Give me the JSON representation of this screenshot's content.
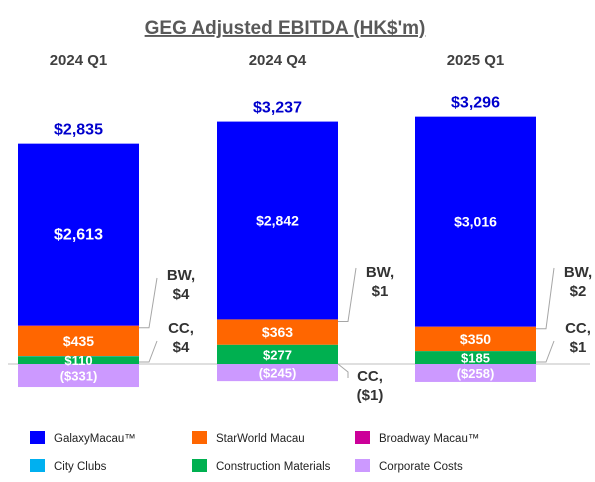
{
  "chart_data": {
    "type": "bar",
    "title": "GEG Adjusted EBITDA (HK$'m)",
    "categories": [
      "2024 Q1",
      "2024 Q4",
      "2025 Q1"
    ],
    "series": [
      {
        "name": "GalaxyMacau™",
        "color": "#0000ff",
        "values": [
          2613,
          2842,
          3016
        ],
        "labels": [
          "$2,613",
          "$2,842",
          "$3,016"
        ]
      },
      {
        "name": "StarWorld Macau",
        "color": "#ff6600",
        "values": [
          435,
          363,
          350
        ],
        "labels": [
          "$435",
          "$363",
          "$350"
        ]
      },
      {
        "name": "Broadway Macau™",
        "color": "#cc0099",
        "values": [
          4,
          1,
          2
        ],
        "labels": [
          "BW,\n$4",
          "BW,\n$1",
          "BW,\n$2"
        ]
      },
      {
        "name": "City Clubs",
        "color": "#00b0f0",
        "values": [
          4,
          -1,
          1
        ],
        "labels": [
          "CC,\n$4",
          "CC,\n($1)",
          "CC,\n$1"
        ]
      },
      {
        "name": "Construction Materials",
        "color": "#00b050",
        "values": [
          110,
          277,
          185
        ],
        "labels": [
          "$110",
          "$277",
          "$185"
        ]
      },
      {
        "name": "Corporate Costs",
        "color": "#cc99ff",
        "values": [
          -331,
          -245,
          -258
        ],
        "labels": [
          "($331)",
          "($245)",
          "($258)"
        ]
      }
    ],
    "totals": [
      2835,
      3237,
      3296
    ],
    "total_labels": [
      "$2,835",
      "$3,237",
      "$3,296"
    ],
    "legend_position": "bottom",
    "grid": false
  }
}
